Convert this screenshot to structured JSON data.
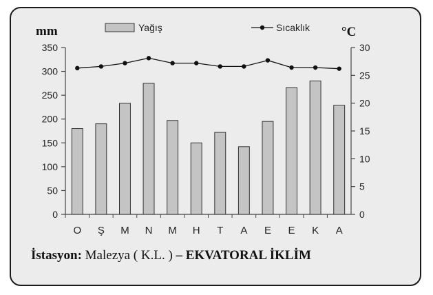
{
  "chart_data": {
    "type": "bar+line",
    "categories": [
      "O",
      "Ş",
      "M",
      "N",
      "M",
      "H",
      "T",
      "A",
      "E",
      "E",
      "K",
      "A"
    ],
    "series": [
      {
        "name": "Yağış",
        "type": "bar",
        "axis": "left",
        "values": [
          180,
          190,
          233,
          275,
          197,
          150,
          172,
          142,
          195,
          266,
          280,
          229
        ]
      },
      {
        "name": "Sıcaklık",
        "type": "line",
        "axis": "right",
        "values": [
          26.3,
          26.6,
          27.2,
          28.1,
          27.2,
          27.2,
          26.6,
          26.6,
          27.7,
          26.4,
          26.4,
          26.2
        ]
      }
    ],
    "ylabel_left": "mm",
    "ylabel_right": "°C",
    "ylim_left": [
      0,
      350
    ],
    "yticks_left": [
      0,
      50,
      100,
      150,
      200,
      250,
      300,
      350
    ],
    "ylim_right": [
      0,
      30
    ],
    "yticks_right": [
      0,
      5,
      10,
      15,
      20,
      25,
      30
    ],
    "legend_position": "top",
    "grid": false,
    "colors": {
      "bar_fill": "#c4c4c4",
      "bar_stroke": "#333333",
      "line": "#111111",
      "axis": "#444444",
      "background": "#ececec"
    }
  },
  "caption": {
    "label": "İstasyon:",
    "station": "Malezya ( K.L. )",
    "separator": "–",
    "climate": "EKVATORAL İKLİM"
  }
}
